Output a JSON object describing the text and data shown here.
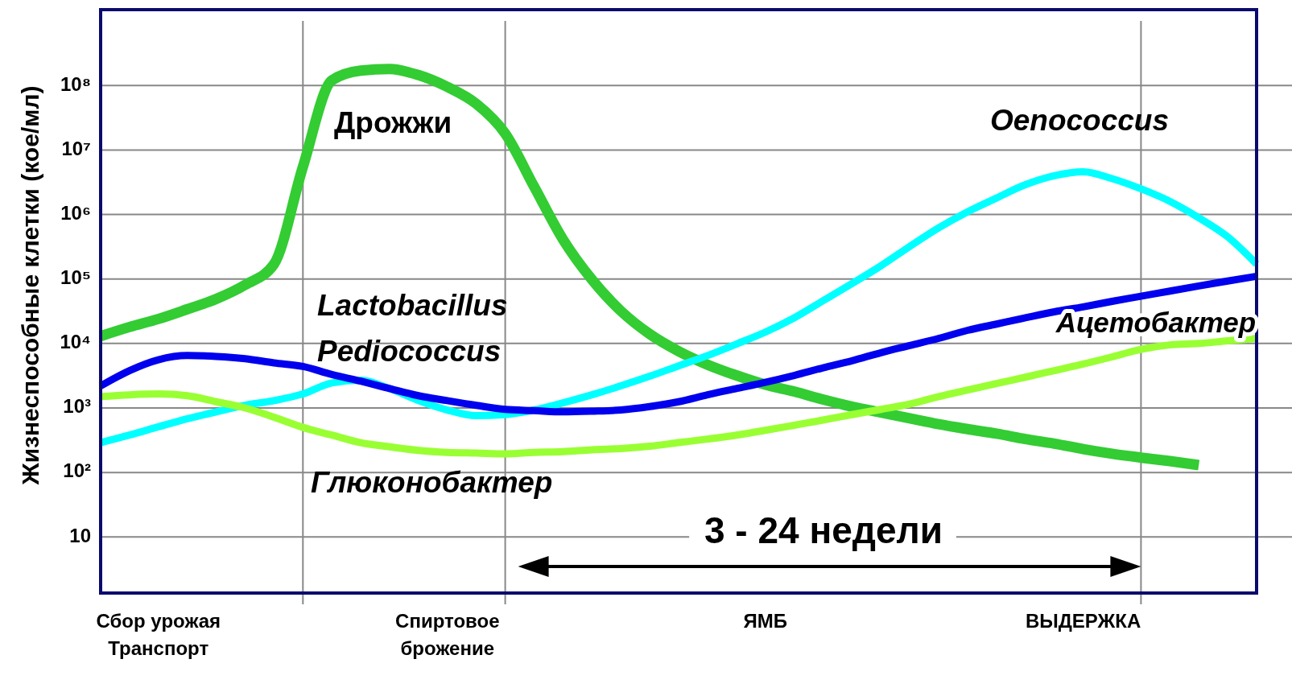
{
  "chart_data": {
    "type": "line",
    "ylabel": "Жизнеспособные клетки (кое/мл)",
    "log": "y",
    "grid": true,
    "line_style": "solid",
    "marker": "none",
    "categories": [
      null,
      null,
      "Сбор урожая\nТранспорт",
      null,
      null,
      null,
      null,
      null,
      null,
      null,
      null,
      null,
      "Спиртовое\nброжение",
      null,
      null,
      null,
      null,
      null,
      null,
      null,
      null,
      null,
      null,
      "ЯМБ",
      null,
      null,
      null,
      null,
      null,
      null,
      null,
      null,
      null,
      null,
      "ВЫДЕРЖКА",
      null,
      null,
      null,
      null,
      null,
      null
    ],
    "ylim": [
      1.35,
      1500000000
    ],
    "yticks": [
      {
        "value": 10,
        "label": "10"
      },
      {
        "value": 100,
        "label": "10²"
      },
      {
        "value": 1000,
        "label": "10³"
      },
      {
        "value": 10000,
        "label": "10⁴"
      },
      {
        "value": 100000,
        "label": "10⁵"
      },
      {
        "value": 1000000,
        "label": "10⁶"
      },
      {
        "value": 10000000,
        "label": "10⁷"
      },
      {
        "value": 100000000,
        "label": "10⁸"
      }
    ],
    "series": [
      {
        "name": "Дрожжи",
        "color": "#33cc33",
        "values": [
          13000,
          18000,
          24000,
          34000,
          49000,
          81000,
          170000,
          5500000,
          120000000,
          170000000,
          180000000,
          145000000,
          95000000,
          52000000,
          18000000,
          2700000,
          410000,
          98000,
          32000,
          14000,
          7600,
          4700,
          3200,
          2300,
          1800,
          1350,
          1050,
          850,
          690,
          560,
          470,
          400,
          330,
          280,
          230,
          195,
          170,
          150,
          130,
          null,
          null
        ]
      },
      {
        "name": "Oenococcus",
        "color": "#00ffff",
        "values": [
          290,
          380,
          510,
          680,
          870,
          1100,
          1300,
          1650,
          2450,
          2700,
          2000,
          1300,
          930,
          760,
          790,
          930,
          1200,
          1600,
          2200,
          3100,
          4500,
          6500,
          9800,
          15000,
          25000,
          46000,
          85000,
          160000,
          320000,
          620000,
          1100000,
          1800000,
          2900000,
          4000000,
          4600000,
          3600000,
          2500000,
          1600000,
          890000,
          450000,
          170000
        ]
      },
      {
        "name": "Lactobacillus\nPediococcus",
        "color": "#0000ee",
        "values": [
          2200,
          3800,
          5600,
          6500,
          6300,
          5800,
          5000,
          4400,
          3300,
          2600,
          2000,
          1550,
          1300,
          1100,
          950,
          910,
          870,
          890,
          930,
          1050,
          1250,
          1600,
          2000,
          2500,
          3200,
          4200,
          5400,
          7200,
          9300,
          12000,
          16000,
          20000,
          25000,
          31000,
          37000,
          45000,
          54000,
          65000,
          78000,
          93000,
          110000
        ]
      },
      {
        "name": "Глюконобактер",
        "color": "#99ff33",
        "values": [
          1500,
          1600,
          1650,
          1550,
          1250,
          1000,
          720,
          500,
          380,
          290,
          250,
          220,
          205,
          200,
          195,
          205,
          210,
          225,
          235,
          255,
          290,
          330,
          380,
          450,
          540,
          650,
          790,
          950,
          1150,
          1500,
          1900,
          2400,
          3000,
          3800,
          4800,
          6200,
          8100,
          9500,
          10000,
          11000,
          12000
        ]
      }
    ],
    "annotations": [
      "Ацетобактер",
      "3 - 24 недели"
    ]
  }
}
